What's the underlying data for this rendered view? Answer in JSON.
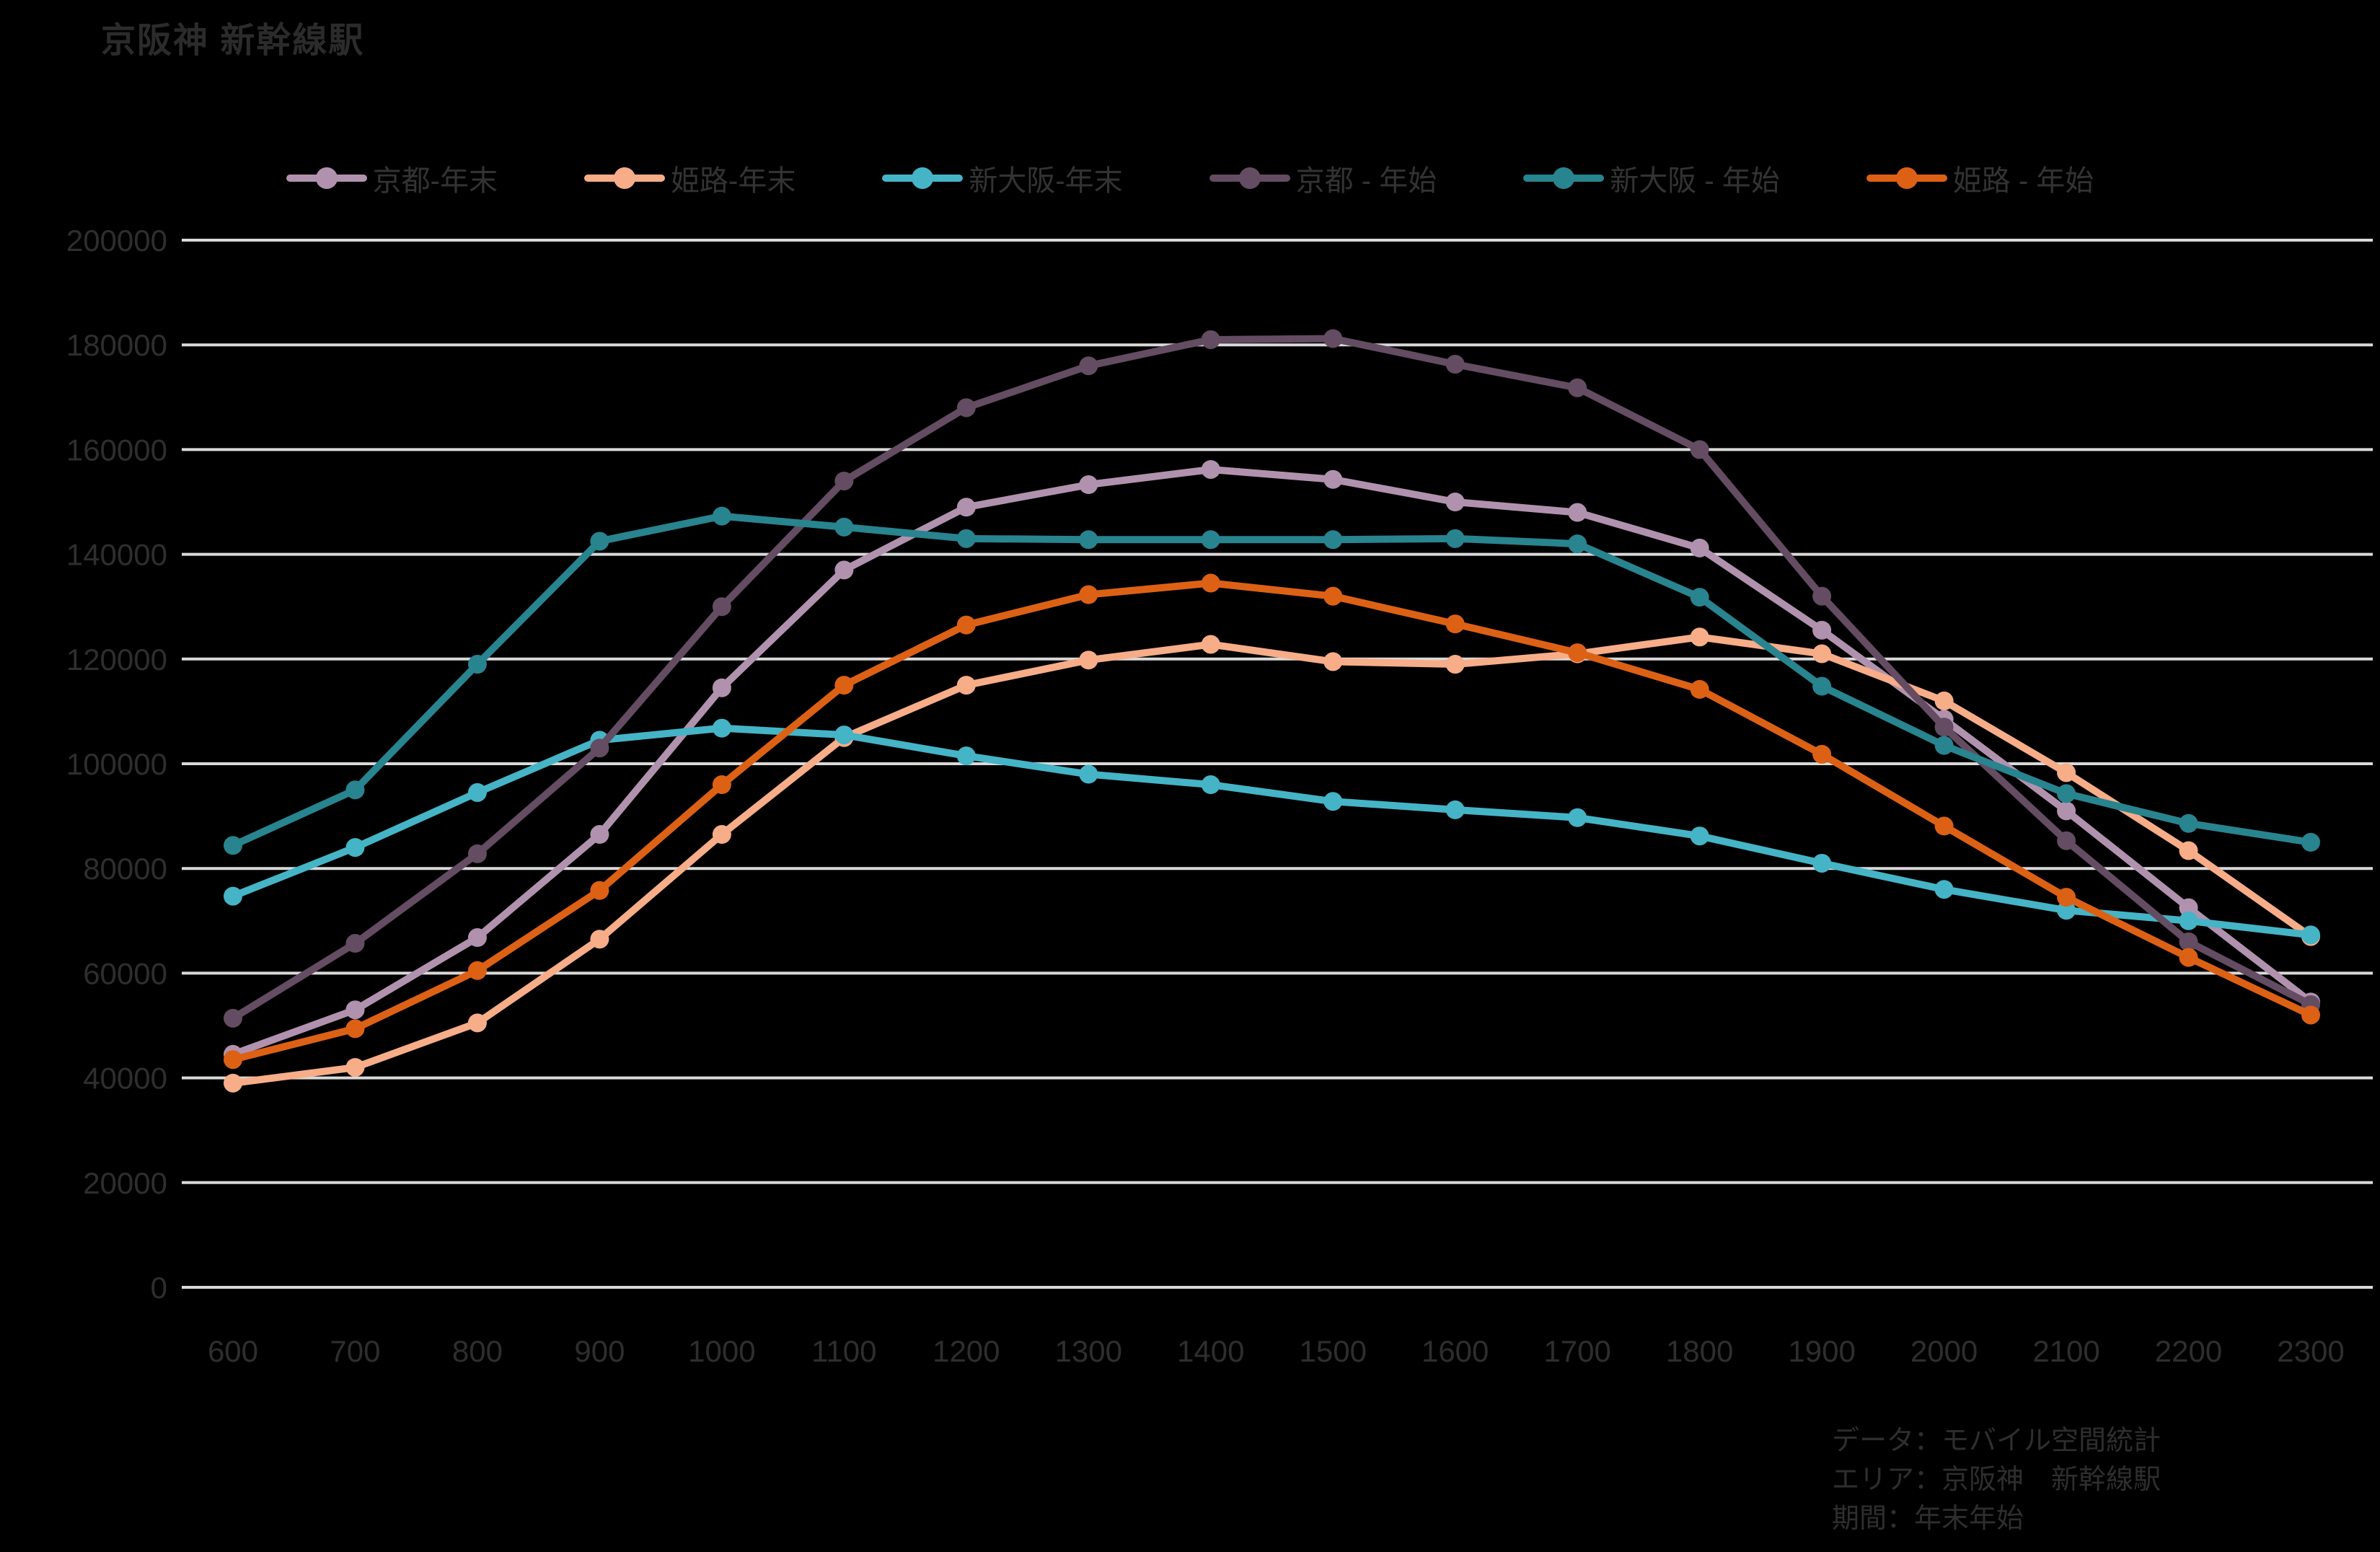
{
  "title": "京阪神 新幹線駅",
  "caption": {
    "lines": [
      "データ：モバイル空間統計",
      "エリア：京阪神　新幹線駅",
      "期間：年末年始"
    ]
  },
  "colors": {
    "background": "#000000",
    "gridline": "#d9d9d9",
    "text": "#2e2e2e"
  },
  "y_axis": {
    "labels": [
      "200000",
      "180000",
      "160000",
      "140000",
      "120000",
      "100000",
      "80000",
      "60000",
      "40000",
      "20000",
      "0"
    ]
  },
  "x_axis": {
    "labels": [
      "600",
      "700",
      "800",
      "900",
      "1000",
      "1100",
      "1200",
      "1300",
      "1400",
      "1500",
      "1600",
      "1700",
      "1800",
      "1900",
      "2000",
      "2100",
      "2200",
      "2300"
    ]
  },
  "chart_data": {
    "type": "line",
    "title": "京阪神 新幹線駅",
    "xlabel": "",
    "ylabel": "",
    "ylim": [
      0,
      200000
    ],
    "ytick_step": 20000,
    "grid": true,
    "legend_position": "top",
    "categories": [
      "600",
      "700",
      "800",
      "900",
      "1000",
      "1100",
      "1200",
      "1300",
      "1400",
      "1500",
      "1600",
      "1700",
      "1800",
      "1900",
      "2000",
      "2100",
      "2200",
      "2300"
    ],
    "series": [
      {
        "name": "京都-年末",
        "color": "#b192ae",
        "values": [
          44500,
          53000,
          66800,
          86500,
          114500,
          137000,
          149000,
          153300,
          156200,
          154300,
          150000,
          148000,
          141200,
          125500,
          108500,
          91000,
          72500,
          54500
        ]
      },
      {
        "name": "姫路-年末",
        "color": "#f7ad88",
        "values": [
          39000,
          42000,
          50500,
          66500,
          86500,
          105000,
          115000,
          119800,
          122800,
          119500,
          119000,
          121000,
          124200,
          121000,
          112000,
          98300,
          83400,
          67000
        ]
      },
      {
        "name": "新大阪-年末",
        "color": "#45b4c6",
        "values": [
          74700,
          84000,
          94500,
          104500,
          106800,
          105500,
          101500,
          98000,
          96000,
          92800,
          91200,
          89700,
          86200,
          81000,
          76000,
          72000,
          70000,
          67300
        ]
      },
      {
        "name": "京都 - 年始",
        "color": "#644c62",
        "values": [
          51400,
          65700,
          82800,
          103000,
          130000,
          154000,
          168000,
          176000,
          181000,
          181200,
          176300,
          171800,
          160000,
          132000,
          107000,
          85300,
          66000,
          54000
        ]
      },
      {
        "name": "新大阪 - 年始",
        "color": "#28848f",
        "values": [
          84400,
          95000,
          119000,
          142500,
          147300,
          145200,
          143000,
          142800,
          142800,
          142800,
          143000,
          142000,
          131800,
          114800,
          103500,
          94300,
          88600,
          85000
        ]
      },
      {
        "name": "姫路 - 年始",
        "color": "#dd6115",
        "values": [
          43500,
          49400,
          60500,
          75800,
          96000,
          115000,
          126500,
          132300,
          134500,
          132000,
          126700,
          121200,
          114200,
          101800,
          88100,
          74500,
          63000,
          52000
        ]
      }
    ]
  }
}
